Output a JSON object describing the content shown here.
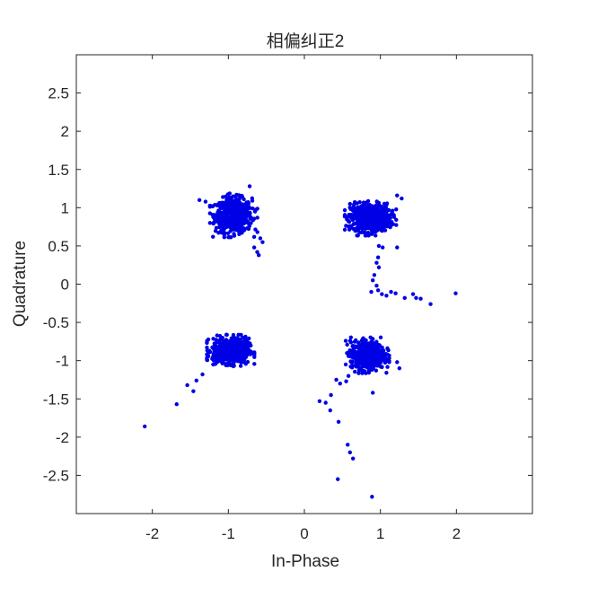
{
  "chart_data": {
    "type": "scatter",
    "title": "相偏纠正2",
    "xlabel": "In-Phase",
    "ylabel": "Quadrature",
    "xlim": [
      -3,
      3
    ],
    "ylim": [
      -3,
      3
    ],
    "xticks": [
      -2,
      -1,
      0,
      1,
      2
    ],
    "xtick_labels": [
      "-2",
      "-1",
      "0",
      "1",
      "2"
    ],
    "yticks": [
      -2.5,
      -2,
      -1.5,
      -1,
      -0.5,
      0,
      0.5,
      1,
      1.5,
      2,
      2.5
    ],
    "ytick_labels": [
      "-2.5",
      "-2",
      "-1.5",
      "-1",
      "-0.5",
      "0",
      "0.5",
      "1",
      "1.5",
      "2",
      "2.5"
    ],
    "grid": false,
    "marker_color": "#0000E6",
    "clusters": [
      {
        "center": [
          -0.93,
          0.9
        ],
        "spread": [
          0.12,
          0.11
        ],
        "count": 600
      },
      {
        "center": [
          0.87,
          0.87
        ],
        "spread": [
          0.13,
          0.09
        ],
        "count": 600
      },
      {
        "center": [
          -0.97,
          -0.87
        ],
        "spread": [
          0.12,
          0.08
        ],
        "count": 600
      },
      {
        "center": [
          0.83,
          -0.93
        ],
        "spread": [
          0.11,
          0.09
        ],
        "count": 600
      }
    ],
    "outliers": [
      [
        -1.38,
        1.1
      ],
      [
        -1.3,
        1.08
      ],
      [
        -1.22,
        1.02
      ],
      [
        -0.72,
        1.28
      ],
      [
        -0.62,
        0.42
      ],
      [
        -0.58,
        0.6
      ],
      [
        -0.55,
        0.55
      ],
      [
        -0.66,
        0.48
      ],
      [
        -0.6,
        0.38
      ],
      [
        1.22,
        1.16
      ],
      [
        1.28,
        1.12
      ],
      [
        0.6,
        1.05
      ],
      [
        0.98,
        0.5
      ],
      [
        1.03,
        0.48
      ],
      [
        1.22,
        0.48
      ],
      [
        0.97,
        0.35
      ],
      [
        0.95,
        0.28
      ],
      [
        0.98,
        0.22
      ],
      [
        0.92,
        0.12
      ],
      [
        0.9,
        0.05
      ],
      [
        0.95,
        -0.02
      ],
      [
        0.88,
        -0.1
      ],
      [
        0.97,
        -0.08
      ],
      [
        1.02,
        -0.13
      ],
      [
        1.08,
        -0.15
      ],
      [
        1.14,
        -0.1
      ],
      [
        1.2,
        -0.12
      ],
      [
        1.32,
        -0.18
      ],
      [
        1.43,
        -0.13
      ],
      [
        1.47,
        -0.18
      ],
      [
        1.53,
        -0.19
      ],
      [
        1.66,
        -0.26
      ],
      [
        1.99,
        -0.12
      ],
      [
        -1.34,
        -1.18
      ],
      [
        -1.42,
        -1.26
      ],
      [
        -1.46,
        -1.4
      ],
      [
        -1.54,
        -1.32
      ],
      [
        -1.68,
        -1.57
      ],
      [
        -2.1,
        -1.86
      ],
      [
        -1.2,
        -1.05
      ],
      [
        0.58,
        -1.2
      ],
      [
        0.55,
        -1.27
      ],
      [
        0.47,
        -1.3
      ],
      [
        0.35,
        -1.45
      ],
      [
        0.28,
        -1.55
      ],
      [
        0.2,
        -1.53
      ],
      [
        0.34,
        -1.65
      ],
      [
        0.45,
        -1.8
      ],
      [
        0.57,
        -2.1
      ],
      [
        0.6,
        -2.2
      ],
      [
        0.64,
        -2.28
      ],
      [
        0.44,
        -2.55
      ],
      [
        0.9,
        -1.42
      ],
      [
        0.89,
        -2.78
      ],
      [
        1.25,
        -1.1
      ],
      [
        1.22,
        -1.02
      ],
      [
        0.42,
        -1.25
      ]
    ]
  }
}
